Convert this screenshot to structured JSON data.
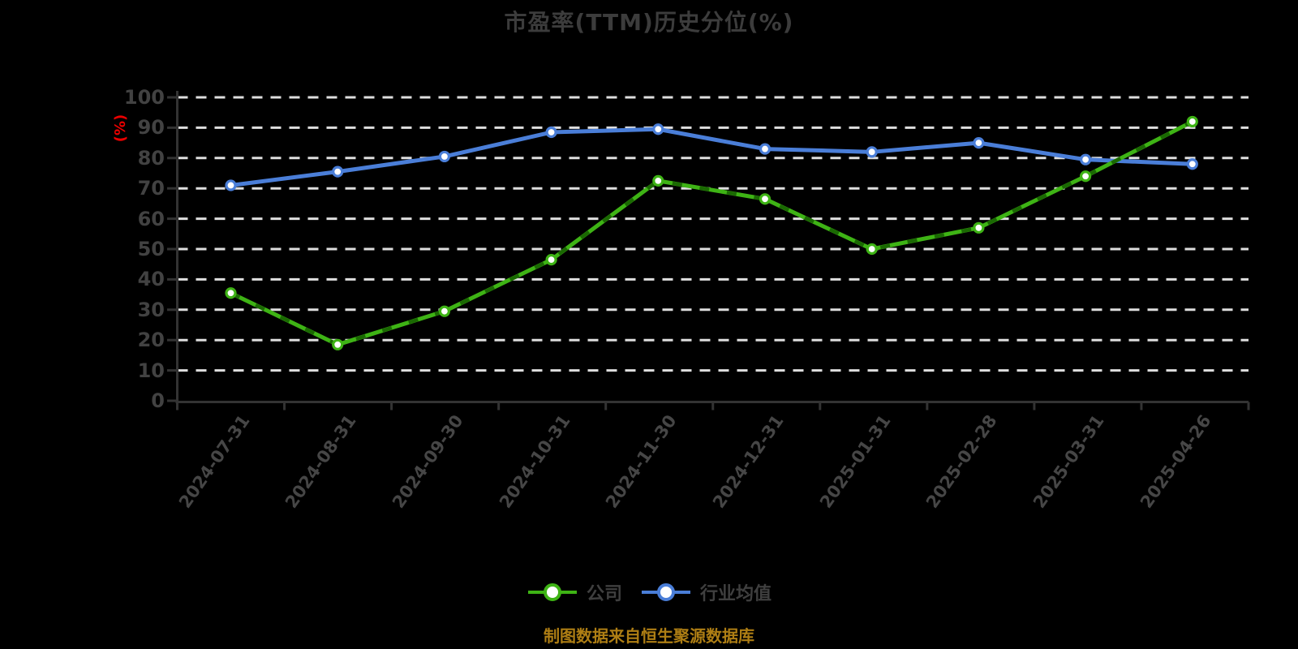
{
  "title": "市盈率(TTM)历史分位(%)",
  "footer": "制图数据来自恒生聚源数据库",
  "y_axis": {
    "label": "(%)",
    "label_color": "#ea0000",
    "ticks": [
      "0",
      "10",
      "20",
      "30",
      "40",
      "50",
      "60",
      "70",
      "80",
      "90",
      "100"
    ]
  },
  "x_axis": {
    "labels": [
      "2024-07-31",
      "2024-08-31",
      "2024-09-30",
      "2024-10-31",
      "2024-11-30",
      "2024-12-31",
      "2025-01-31",
      "2025-02-28",
      "2025-03-31",
      "2025-04-26"
    ]
  },
  "colors": {
    "background": "#000000",
    "grid": "#dedede",
    "axis": "#333333",
    "text": "#424242",
    "title": "#3c3c3c",
    "footer": "#ae7e14",
    "company_green": "#3eb315",
    "company_dash_overlay": "#166000",
    "industry_blue": "#4a7ed8",
    "marker_fill": "#ffffff"
  },
  "chart_data": {
    "type": "line",
    "title": "市盈率(TTM)历史分位(%)",
    "ylabel": "(%)",
    "ylim": [
      0,
      100
    ],
    "y_tick_step": 10,
    "grid": true,
    "grid_style": "dashed",
    "legend_position": "bottom",
    "categories": [
      "2024-07-31",
      "2024-08-31",
      "2024-09-30",
      "2024-10-31",
      "2024-11-30",
      "2024-12-31",
      "2025-01-31",
      "2025-02-28",
      "2025-03-31",
      "2025-04-26"
    ],
    "series": [
      {
        "name": "公司",
        "color": "#3eb315",
        "dash_overlay_color": "#166000",
        "values": [
          35.5,
          18.5,
          29.5,
          46.5,
          72.5,
          66.5,
          50,
          57,
          74,
          92
        ]
      },
      {
        "name": "行业均值",
        "color": "#4a7ed8",
        "values": [
          71,
          75.5,
          80.5,
          88.5,
          89.5,
          83,
          82,
          85,
          79.5,
          78
        ]
      }
    ]
  }
}
